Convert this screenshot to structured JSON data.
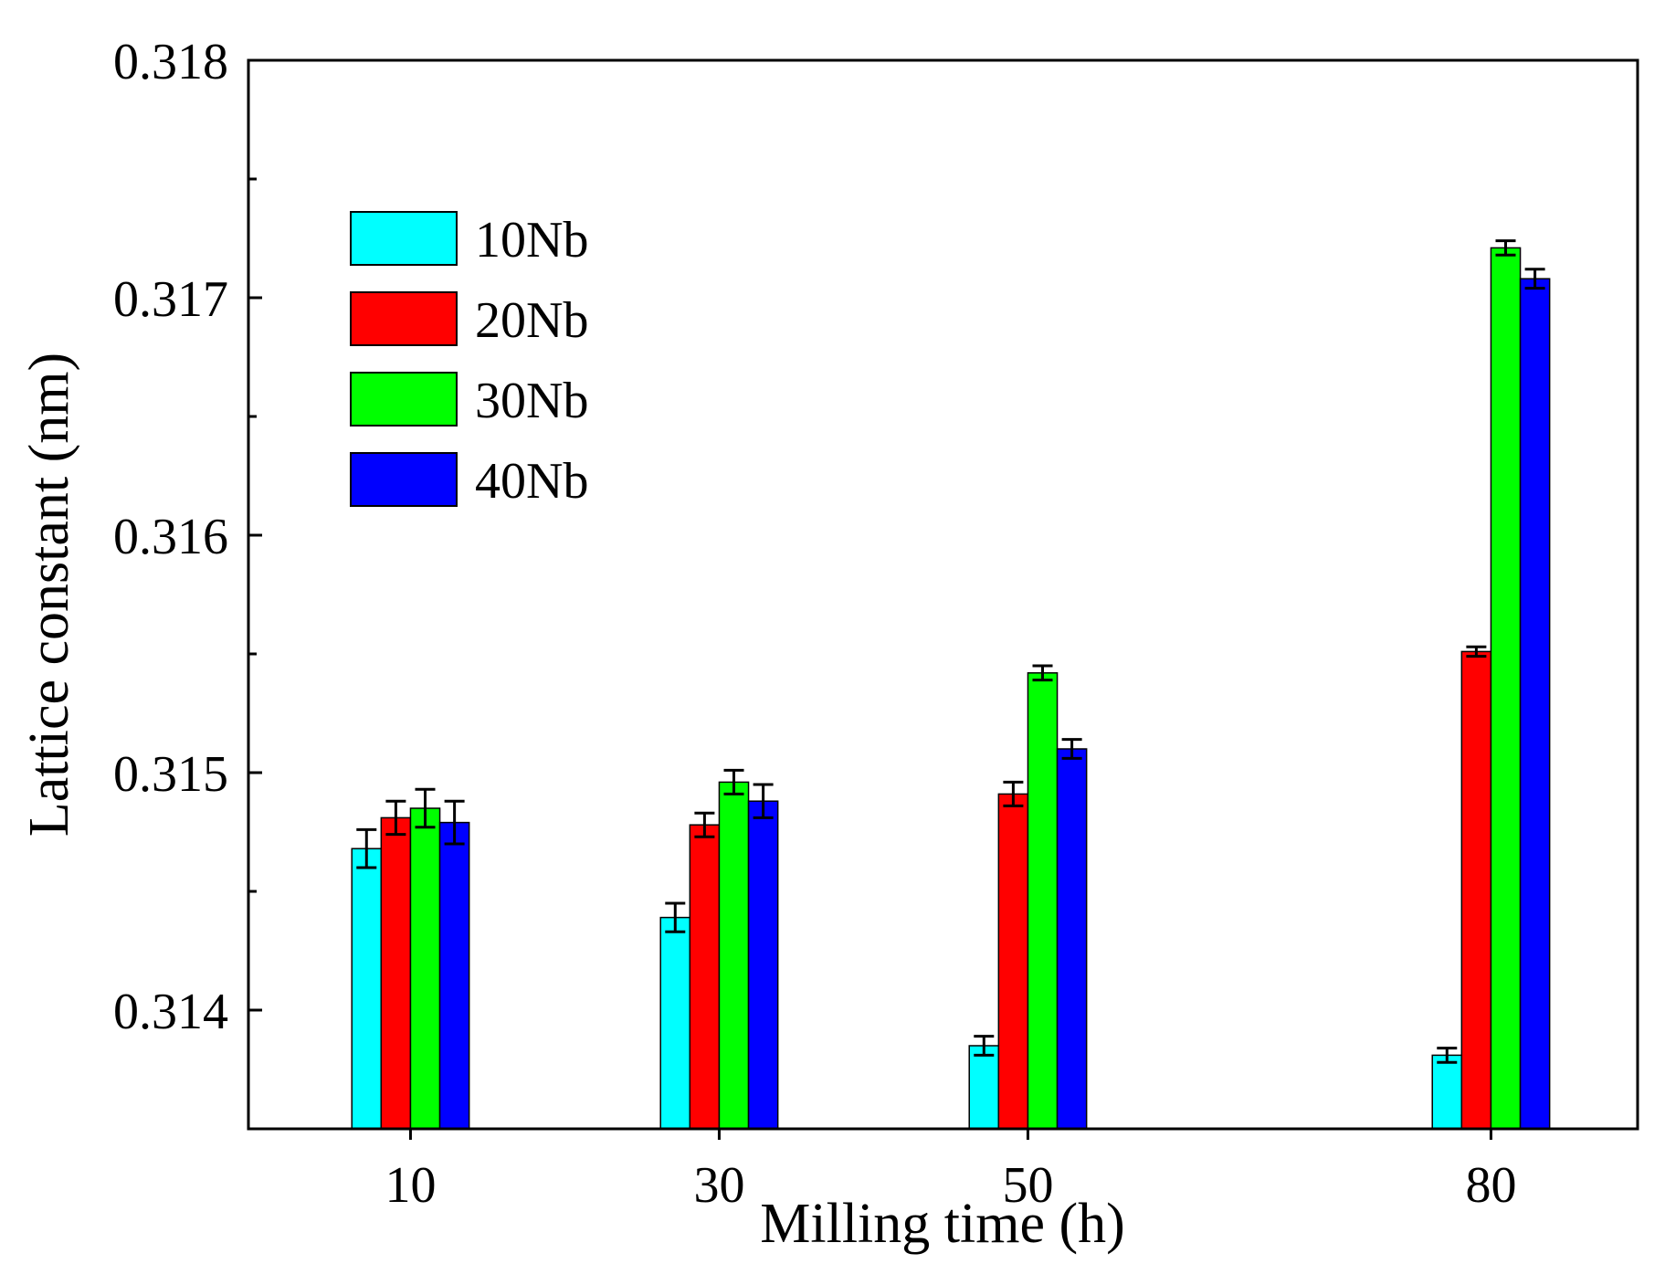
{
  "chart_data": {
    "type": "bar",
    "title": "",
    "xlabel": "Milling time (h)",
    "ylabel": "Lattice constant (nm)",
    "categories": [
      "10",
      "30",
      "50",
      "80"
    ],
    "x": [
      10,
      30,
      50,
      80
    ],
    "xlim": [
      -0.5,
      89.5
    ],
    "ylim": [
      0.3135,
      0.318
    ],
    "yticks": [
      "0.314",
      "0.315",
      "0.316",
      "0.317",
      "0.318"
    ],
    "ytick_values": [
      0.314,
      0.315,
      0.316,
      0.317,
      0.318
    ],
    "legend_position": "upper-left",
    "grid": false,
    "series": [
      {
        "name": "10Nb",
        "color": "#00ffff",
        "values": [
          0.31468,
          0.31439,
          0.31385,
          0.31381
        ],
        "errors": [
          8e-05,
          6e-05,
          4e-05,
          3e-05
        ]
      },
      {
        "name": "20Nb",
        "color": "#ff0000",
        "values": [
          0.31481,
          0.31478,
          0.31491,
          0.31551
        ],
        "errors": [
          7e-05,
          5e-05,
          5e-05,
          2e-05
        ]
      },
      {
        "name": "30Nb",
        "color": "#00ff00",
        "values": [
          0.31485,
          0.31496,
          0.31542,
          0.31721
        ],
        "errors": [
          8e-05,
          5e-05,
          3e-05,
          3e-05
        ]
      },
      {
        "name": "40Nb",
        "color": "#0000ff",
        "values": [
          0.31479,
          0.31488,
          0.3151,
          0.31708
        ],
        "errors": [
          9e-05,
          7e-05,
          4e-05,
          4e-05
        ]
      }
    ]
  }
}
